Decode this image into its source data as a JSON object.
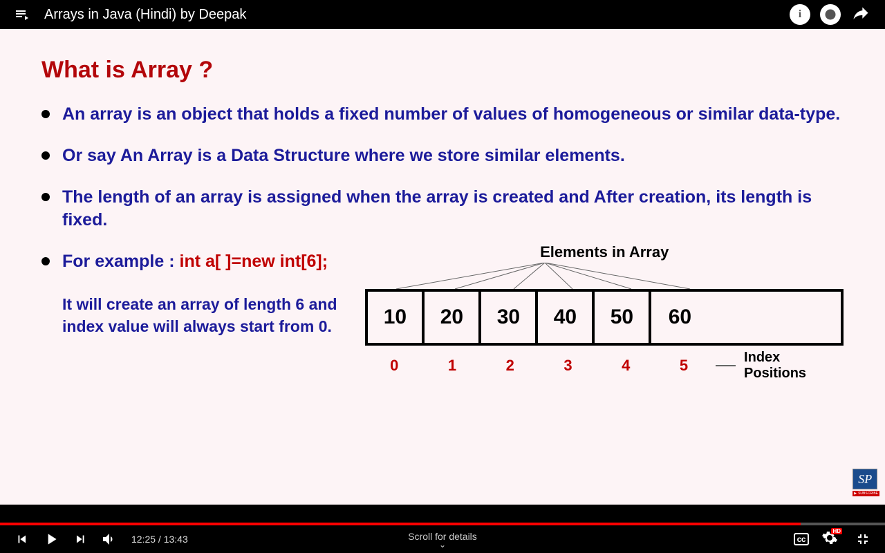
{
  "top": {
    "video_title": "Arrays in Java (Hindi) by Deepak",
    "info_label": "i"
  },
  "slide": {
    "title": "What is Array ?",
    "title_color": "#b3060a",
    "bullet_color": "#1c1b9a",
    "background": "#fdf4f6",
    "bullets": [
      "An array is an object that holds a fixed number of values of homogeneous or similar data-type.",
      "Or say An Array is a Data Structure where we store similar elements.",
      "The length of an array is assigned when the array is created and After creation, its length is fixed."
    ],
    "example_prefix": "For example : ",
    "example_code": "int a[ ]=new int[6];",
    "example_desc": "It will create an array of length 6 and index value will always start from 0."
  },
  "diagram": {
    "elements_label": "Elements in Array",
    "values": [
      "10",
      "20",
      "30",
      "40",
      "50",
      "60"
    ],
    "indices": [
      "0",
      "1",
      "2",
      "3",
      "4",
      "5"
    ],
    "index_positions_label": "Index Positions",
    "cell_border_color": "#000000",
    "index_color": "#c00000"
  },
  "logo": {
    "text": "SP",
    "subscribe": "SUBSCRIBE"
  },
  "player": {
    "current_time": "12:25",
    "duration": "13:43",
    "progress_percent": 90.5,
    "loaded_percent": 96,
    "scroll_text": "Scroll for details",
    "cc_label": "cc",
    "hd_label": "HD",
    "progress_color": "#ff0000"
  }
}
